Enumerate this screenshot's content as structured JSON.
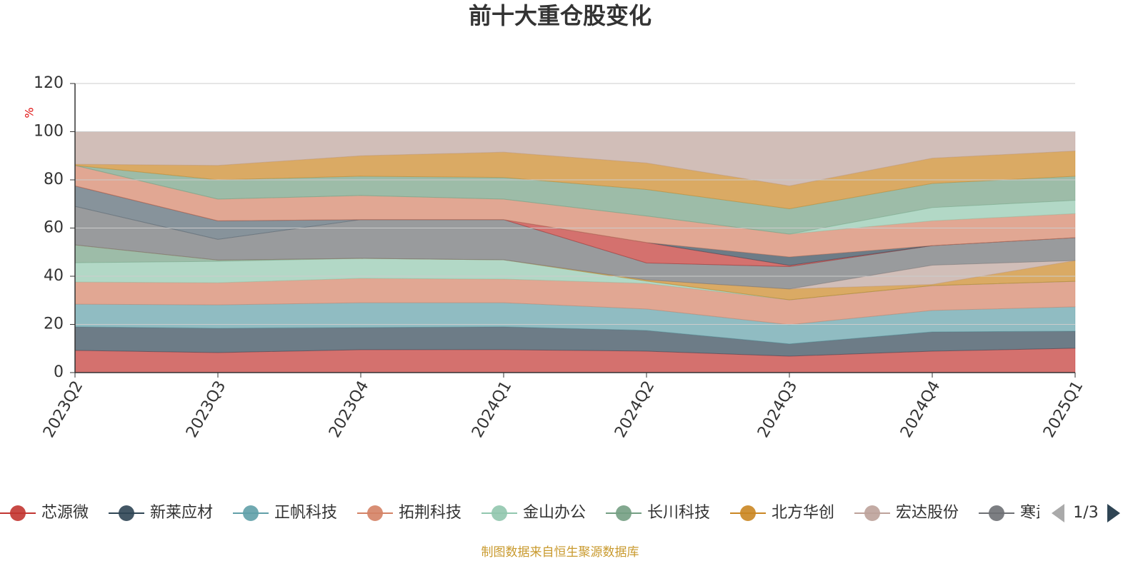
{
  "chart_data": {
    "type": "stacked-area",
    "title": "前十大重仓股变化",
    "y_label": "%",
    "categories": [
      "2023Q2",
      "2023Q3",
      "2023Q4",
      "2024Q1",
      "2024Q2",
      "2024Q3",
      "2024Q4",
      "2025Q1"
    ],
    "ylim": [
      0,
      120
    ],
    "yticks": [
      0,
      20,
      40,
      60,
      80,
      100,
      120
    ],
    "grid": true,
    "series": [
      {
        "name": "芯源微",
        "color": "#c23531",
        "values": [
          9.2,
          8.3,
          9.5,
          9.5,
          8.9,
          6.8,
          8.9,
          10.1
        ]
      },
      {
        "name": "新莱应材",
        "color": "#2f4554",
        "values": [
          9.8,
          10.1,
          9.2,
          9.5,
          8.6,
          5.1,
          8.0,
          7.1
        ]
      },
      {
        "name": "正帆科技",
        "color": "#61a0a8",
        "values": [
          9.4,
          9.7,
          10.3,
          10.0,
          8.9,
          8.0,
          8.9,
          10.1
        ]
      },
      {
        "name": "拓荆科技",
        "color": "#d48265",
        "values": [
          9.2,
          9.2,
          10.1,
          9.8,
          10.6,
          10.3,
          10.3,
          10.6
        ]
      },
      {
        "name": "金山办公",
        "color": "#91c7ae",
        "values": [
          8.0,
          8.9,
          8.3,
          8.0,
          1.0,
          0,
          0,
          0
        ]
      },
      {
        "name": "长川科技",
        "color": "#749f83",
        "values": [
          7.4,
          0.5,
          0,
          0,
          0,
          0,
          0,
          0
        ]
      },
      {
        "name": "北方华创",
        "color": "#ca8622",
        "values": [
          0,
          0,
          0,
          0,
          0.5,
          4.5,
          0.5,
          8.6
        ]
      },
      {
        "name": "宏达股份",
        "color": "#bda29a",
        "values": [
          0,
          0,
          0,
          0,
          0,
          0,
          8.0,
          0
        ]
      },
      {
        "name": "寒武纪",
        "color": "#6e7074",
        "values": [
          16.0,
          8.6,
          16.1,
          16.7,
          7.0,
          9.3,
          8.1,
          9.5
        ]
      },
      {
        "color": "#546570",
        "values": [
          8.5,
          7.7,
          0,
          0,
          0,
          0,
          0,
          0
        ]
      },
      {
        "color": "#c23531",
        "values": [
          0,
          0,
          0,
          0,
          8.5,
          0.5,
          0,
          0
        ]
      },
      {
        "color": "#2f4554",
        "values": [
          0,
          0,
          0,
          0,
          0,
          3.5,
          0,
          0
        ]
      },
      {
        "color": "#d48265",
        "values": [
          8.5,
          9.0,
          10.0,
          8.5,
          11.0,
          9.5,
          10.3,
          10.0
        ]
      },
      {
        "color": "#91c7ae",
        "values": [
          0,
          0,
          0,
          0,
          0,
          0,
          5.5,
          5.5
        ]
      },
      {
        "color": "#749f83",
        "values": [
          0,
          8.0,
          8.0,
          9.0,
          11.0,
          10.5,
          10.0,
          10.0
        ]
      },
      {
        "color": "#ca8622",
        "values": [
          0.5,
          6.0,
          8.5,
          10.5,
          11.0,
          9.5,
          10.5,
          10.5
        ]
      },
      {
        "color": "#bda29a",
        "values": [
          13.5,
          14.0,
          10.0,
          8.5,
          13.0,
          22.5,
          11.0,
          8.0
        ]
      }
    ],
    "legend_page": "1/3",
    "source": "制图数据来自恒生聚源数据库"
  }
}
